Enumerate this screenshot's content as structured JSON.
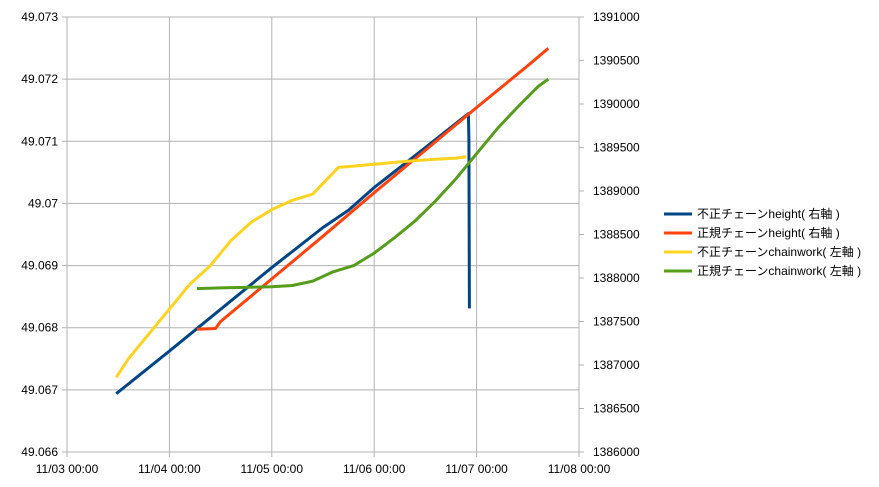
{
  "chart_data": {
    "type": "line",
    "title": "",
    "xlabel": "",
    "ylabel": "",
    "y2label": "",
    "grid": true,
    "legend_position": "right",
    "x_ticks": [
      "11/03 00:00",
      "11/04 00:00",
      "11/05 00:00",
      "11/06 00:00",
      "11/07 00:00",
      "11/08 00:00"
    ],
    "xlim": [
      0,
      5
    ],
    "y_left": {
      "ticks": [
        "49.066",
        "49.067",
        "49.068",
        "49.069",
        "49.07",
        "49.071",
        "49.072",
        "49.073"
      ],
      "ylim": [
        49.066,
        49.073
      ]
    },
    "y_right": {
      "ticks": [
        "1386000",
        "1386500",
        "1387000",
        "1387500",
        "1388000",
        "1388500",
        "1389000",
        "1389500",
        "1390000",
        "1390500",
        "1391000"
      ],
      "ylim": [
        1386000,
        1391000
      ]
    },
    "series": [
      {
        "name": "不正チェーンheight( 右軸 )",
        "axis": "right",
        "color": "#004586",
        "x": [
          0.48,
          1.0,
          1.5,
          2.0,
          2.5,
          2.75,
          3.0,
          3.5,
          3.92,
          3.925,
          3.93
        ],
        "y": [
          1386670,
          1387160,
          1387640,
          1388120,
          1388580,
          1388780,
          1389040,
          1389500,
          1389890,
          1389600,
          1387650
        ]
      },
      {
        "name": "正規チェーンheight( 右軸 )",
        "axis": "right",
        "color": "#ff420e",
        "x": [
          1.27,
          1.45,
          1.5,
          2.0,
          2.5,
          3.0,
          3.5,
          4.0,
          4.5,
          4.7
        ],
        "y": [
          1387410,
          1387420,
          1387500,
          1387990,
          1388480,
          1388980,
          1389470,
          1389960,
          1390440,
          1390640
        ]
      },
      {
        "name": "不正チェーンchainwork( 左軸 )",
        "axis": "left",
        "color": "#ffd320",
        "x": [
          0.48,
          0.6,
          0.8,
          1.0,
          1.2,
          1.4,
          1.6,
          1.8,
          2.0,
          2.2,
          2.4,
          2.65,
          2.8,
          3.0,
          3.2,
          3.4,
          3.6,
          3.8,
          3.9
        ],
        "y": [
          49.0672,
          49.0675,
          49.0679,
          49.0683,
          49.0687,
          49.069,
          49.0694,
          49.0697,
          49.0699,
          49.07005,
          49.07015,
          49.07058,
          49.0706,
          49.07063,
          49.07066,
          49.07069,
          49.07071,
          49.07073,
          49.07075
        ]
      },
      {
        "name": "正規チェーンchainwork( 左軸 )",
        "axis": "left",
        "color": "#579d1c",
        "x": [
          1.27,
          1.5,
          2.0,
          2.2,
          2.4,
          2.6,
          2.8,
          3.0,
          3.2,
          3.4,
          3.6,
          3.8,
          4.0,
          4.2,
          4.4,
          4.6,
          4.7
        ],
        "y": [
          49.06863,
          49.06864,
          49.06866,
          49.06868,
          49.06875,
          49.0689,
          49.069,
          49.0692,
          49.06945,
          49.06972,
          49.07004,
          49.0704,
          49.0708,
          49.0712,
          49.07155,
          49.07188,
          49.072
        ]
      }
    ]
  }
}
